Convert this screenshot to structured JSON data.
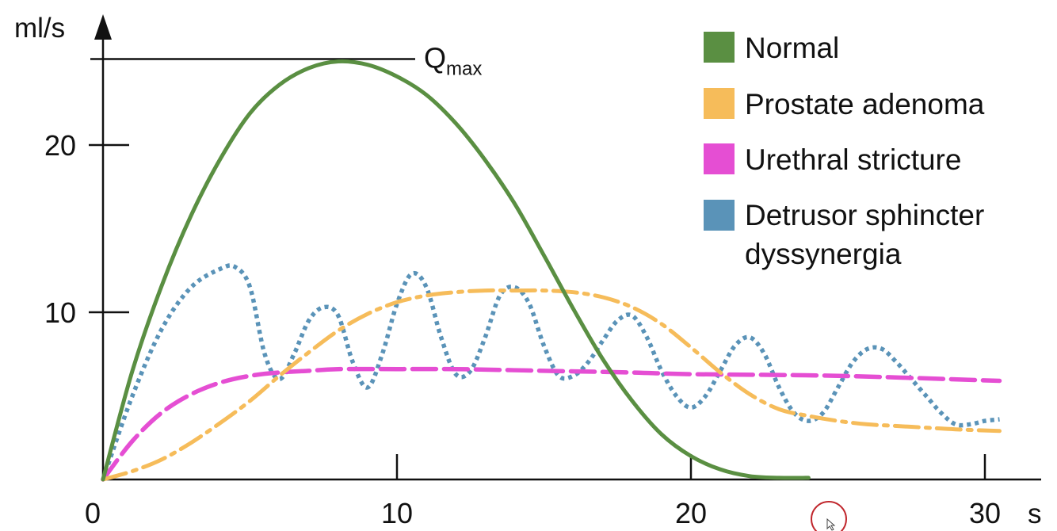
{
  "chart_data": {
    "type": "line",
    "title": "",
    "xlabel": "s",
    "ylabel": "ml/s",
    "xlim": [
      0,
      31.5
    ],
    "ylim": [
      0,
      25.5
    ],
    "x_ticks": [
      "0",
      "10",
      "20",
      "30"
    ],
    "x_tick_values": [
      0,
      10,
      20,
      30
    ],
    "y_ticks": [
      "10",
      "20"
    ],
    "y_tick_values": [
      10,
      20
    ],
    "qmax": {
      "label": "Q",
      "subscript": "max",
      "value": 25
    },
    "legend_position": "top-right",
    "series": [
      {
        "name": "Normal",
        "color": "#5a8f42",
        "dash": "solid",
        "x": [
          0,
          1,
          2,
          3,
          4,
          5,
          6,
          7,
          8,
          9,
          10,
          11,
          12,
          13,
          14,
          15,
          16,
          17,
          18,
          19,
          20,
          21,
          22,
          23,
          24
        ],
        "y": [
          0,
          6.5,
          11.6,
          15.8,
          19.2,
          21.9,
          23.6,
          24.6,
          25,
          24.8,
          24.1,
          23,
          21.3,
          19.1,
          16.5,
          13.4,
          10.2,
          7.2,
          4.7,
          2.7,
          1.4,
          0.6,
          0.2,
          0.1,
          0.1
        ]
      },
      {
        "name": "Prostate adenoma",
        "color": "#f6bc5a",
        "dash": "dashdot",
        "x": [
          0,
          1,
          2,
          3,
          4,
          5,
          6,
          7,
          8,
          9,
          10,
          11,
          12,
          13,
          14,
          15,
          16,
          17,
          18,
          19,
          20,
          21,
          22,
          23,
          24,
          25,
          26,
          27,
          28,
          29,
          30.5
        ],
        "y": [
          0,
          0.5,
          1.2,
          2.2,
          3.4,
          4.7,
          6.2,
          7.6,
          8.9,
          9.9,
          10.6,
          11,
          11.2,
          11.3,
          11.3,
          11.3,
          11.2,
          10.9,
          10.3,
          9.3,
          7.9,
          6.4,
          5.1,
          4.2,
          3.8,
          3.5,
          3.3,
          3.2,
          3.1,
          3,
          2.9
        ]
      },
      {
        "name": "Urethral stricture",
        "color": "#e54ed3",
        "dash": "dashed",
        "x": [
          0,
          1,
          2,
          3,
          4,
          5,
          6,
          7,
          8,
          10,
          12,
          15,
          18,
          20,
          25,
          30.5
        ],
        "y": [
          0,
          2.3,
          4,
          5.1,
          5.8,
          6.2,
          6.4,
          6.5,
          6.6,
          6.6,
          6.6,
          6.5,
          6.4,
          6.3,
          6.2,
          5.9
        ]
      },
      {
        "name": "Detrusor sphincter dyssynergia",
        "color": "#5a93b8",
        "dash": "dotted",
        "x": [
          0,
          1,
          2,
          3,
          4,
          4.5,
          5,
          5.5,
          6,
          6.5,
          7,
          7.5,
          8,
          8.5,
          9,
          9.5,
          10,
          10.5,
          11,
          11.5,
          12,
          12.5,
          13,
          13.5,
          14,
          14.5,
          15,
          15.5,
          16,
          16.5,
          17,
          17.5,
          18,
          18.5,
          19,
          19.5,
          20,
          20.5,
          21,
          21.5,
          22,
          22.5,
          23,
          23.5,
          24,
          24.5,
          25,
          25.5,
          26,
          26.5,
          27,
          27.5,
          28,
          28.5,
          29,
          29.5,
          30,
          30.5
        ],
        "y": [
          0,
          5,
          9,
          11.5,
          12.6,
          12.7,
          11.5,
          7.5,
          6,
          7.5,
          9.5,
          10.3,
          9.8,
          7,
          5.5,
          7.5,
          10.5,
          12.3,
          11.5,
          8.5,
          6.3,
          6.5,
          8.5,
          11,
          11.5,
          10.5,
          8,
          6.2,
          6.2,
          7,
          8.3,
          9.5,
          9.8,
          8.5,
          6.5,
          5,
          4.3,
          5,
          6.5,
          8,
          8.5,
          7.5,
          5.5,
          4,
          3.5,
          4,
          5.5,
          7,
          7.8,
          7.8,
          7,
          6,
          5,
          4,
          3.3,
          3.3,
          3.5,
          3.6
        ]
      }
    ]
  }
}
